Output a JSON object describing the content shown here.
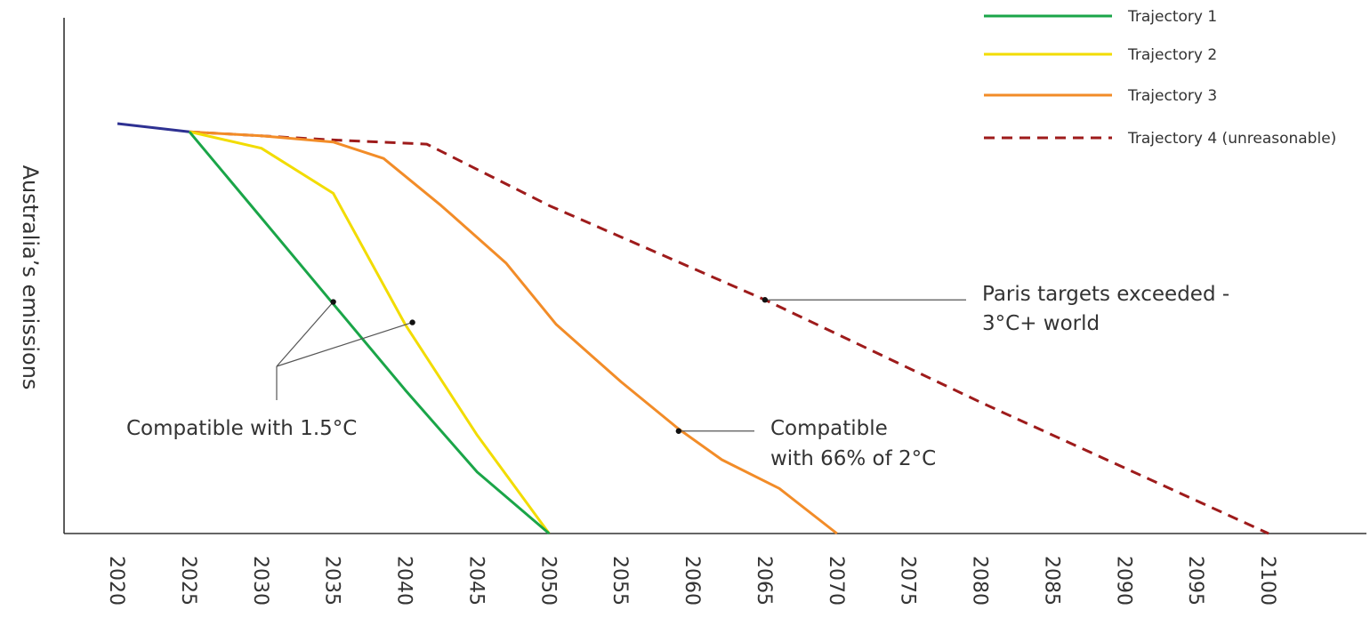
{
  "chart_data": {
    "type": "line",
    "title": "",
    "xlabel": "",
    "ylabel": "Australia’s emissions",
    "x_ticks": [
      "2020",
      "2025",
      "2030",
      "2035",
      "2040",
      "2045",
      "2050",
      "2055",
      "2060",
      "2065",
      "2070",
      "2075",
      "2080",
      "2085",
      "2090",
      "2095",
      "2100"
    ],
    "xlim": [
      2020,
      2100
    ],
    "ylim": [
      0,
      100
    ],
    "grid": false,
    "legend_position": "top-right",
    "history": {
      "color": "#2e3192",
      "points": [
        [
          2020,
          100
        ],
        [
          2025,
          98
        ]
      ]
    },
    "series": [
      {
        "name": "Trajectory 1",
        "color": "#1aa548",
        "dashed": false,
        "points": [
          [
            2025,
            98
          ],
          [
            2030,
            77
          ],
          [
            2035,
            56
          ],
          [
            2040,
            35
          ],
          [
            2045,
            15
          ],
          [
            2050,
            0
          ]
        ]
      },
      {
        "name": "Trajectory 2",
        "color": "#f2dc00",
        "dashed": false,
        "points": [
          [
            2025,
            98
          ],
          [
            2030,
            94
          ],
          [
            2035,
            83
          ],
          [
            2040,
            51
          ],
          [
            2045,
            24
          ],
          [
            2050,
            0
          ]
        ]
      },
      {
        "name": "Trajectory 3",
        "color": "#f28c28",
        "dashed": false,
        "points": [
          [
            2025,
            98
          ],
          [
            2030,
            97
          ],
          [
            2035,
            95.5
          ],
          [
            2038.5,
            91.5
          ],
          [
            2042.5,
            80
          ],
          [
            2047,
            66
          ],
          [
            2050.5,
            51
          ],
          [
            2055,
            37
          ],
          [
            2059,
            25.5
          ],
          [
            2062,
            18
          ],
          [
            2066,
            11
          ],
          [
            2070,
            0
          ]
        ]
      },
      {
        "name": "Trajectory 4 (unreasonable)",
        "color": "#9e1b1b",
        "dashed": true,
        "points": [
          [
            2025,
            98
          ],
          [
            2035,
            96
          ],
          [
            2041.5,
            95
          ],
          [
            2050,
            80
          ],
          [
            2065,
            57
          ],
          [
            2080,
            32
          ],
          [
            2100,
            0
          ]
        ]
      }
    ],
    "annotations": [
      {
        "id": "ann-15c",
        "lines": [
          "Compatible with 1.5°C"
        ],
        "points": [
          [
            2035,
            56.5
          ],
          [
            2040.5,
            51.5
          ]
        ]
      },
      {
        "id": "ann-2c",
        "lines": [
          "Compatible",
          "with 66% of 2°C"
        ],
        "points": [
          [
            2059,
            25
          ]
        ]
      },
      {
        "id": "ann-paris",
        "lines": [
          "Paris targets exceeded -",
          "3°C+ world"
        ],
        "points": [
          [
            2065,
            57
          ]
        ]
      }
    ]
  }
}
